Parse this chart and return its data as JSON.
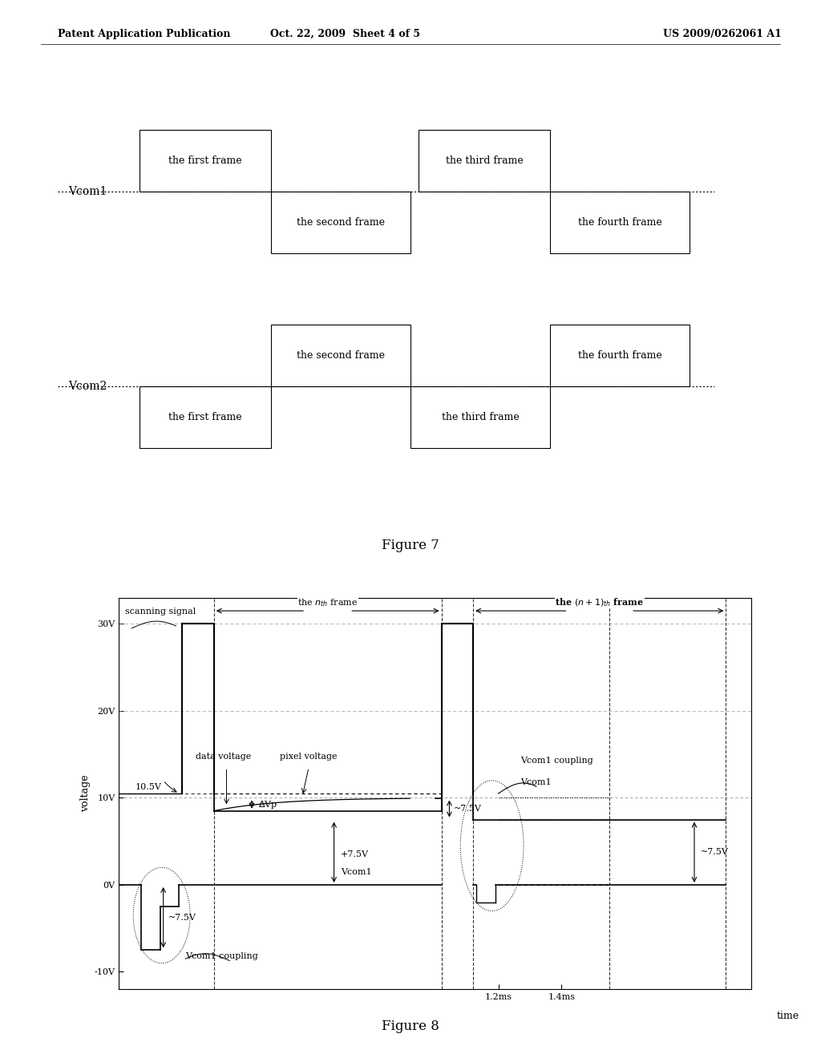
{
  "header_left": "Patent Application Publication",
  "header_mid": "Oct. 22, 2009  Sheet 4 of 5",
  "header_right": "US 2009/0262061 A1",
  "fig7_title": "Figure 7",
  "fig8_title": "Figure 8",
  "fig7_vcom1_label": "Vcom1",
  "fig7_vcom2_label": "Vcom2",
  "fig8_ylabel": "voltage",
  "fig8_xlabel": "time",
  "bg_color": "#ffffff",
  "line_color": "#000000"
}
